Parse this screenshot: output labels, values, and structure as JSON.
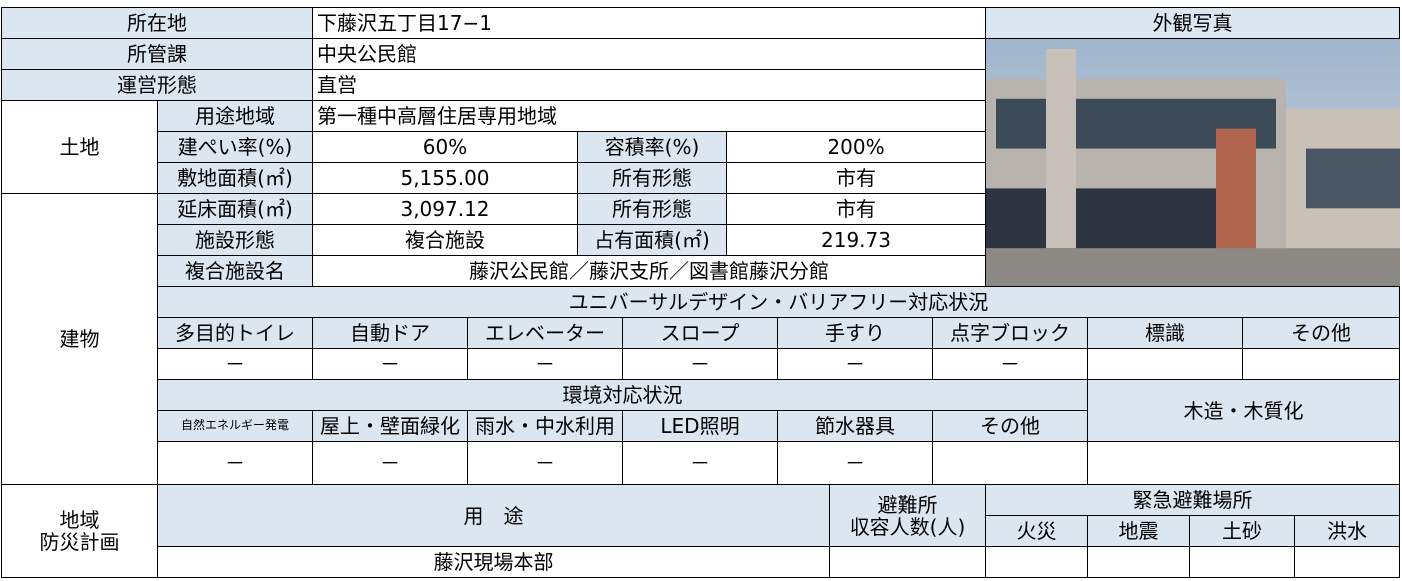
{
  "table": {
    "rows": [
      [
        "所在地",
        "下藤沢五丁目17−1",
        "外観写真"
      ],
      [
        "所管課",
        "中央公民館"
      ],
      [
        "運営形態",
        "直営"
      ],
      [
        "土地",
        "用途地域",
        "第一種中高層住居専用地域"
      ],
      [
        "建ぺい率(%)",
        "60%",
        "容積率(%)",
        "200%"
      ],
      [
        "敷地面積(㎡)",
        "5,155.00",
        "所有形態",
        "市有"
      ],
      [
        "建物",
        "延床面積(㎡)",
        "3,097.12",
        "所有形態",
        "市有"
      ],
      [
        "施設形態",
        "複合施設",
        "占有面積(㎡)",
        "219.73"
      ],
      [
        "複合施設名",
        "藤沢公民館／藤沢支所／図書館藤沢分館"
      ],
      [
        "ユニバーサルデザイン・バリアフリー対応状況"
      ],
      [
        "多目的トイレ",
        "自動ドア",
        "エレベーター",
        "スロープ",
        "手すり",
        "点字ブロック",
        "標識",
        "その他"
      ],
      [
        "－",
        "－",
        "－",
        "－",
        "－",
        "－"
      ],
      [
        "環境対応状況",
        "木造・木質化"
      ],
      [
        "自然エネルギー発電",
        "屋上・壁面緑化",
        "雨水・中水利用",
        "LED照明",
        "節水器具",
        "その他"
      ],
      [
        "－",
        "－",
        "－",
        "－",
        "－"
      ],
      [
        "地域\n防災計画",
        "用　途",
        "避難所\n収容人数(人)",
        "緊急避難場所"
      ],
      [
        "火災",
        "地震",
        "土砂",
        "洪水"
      ],
      [
        "藤沢現場本部"
      ]
    ]
  }
}
